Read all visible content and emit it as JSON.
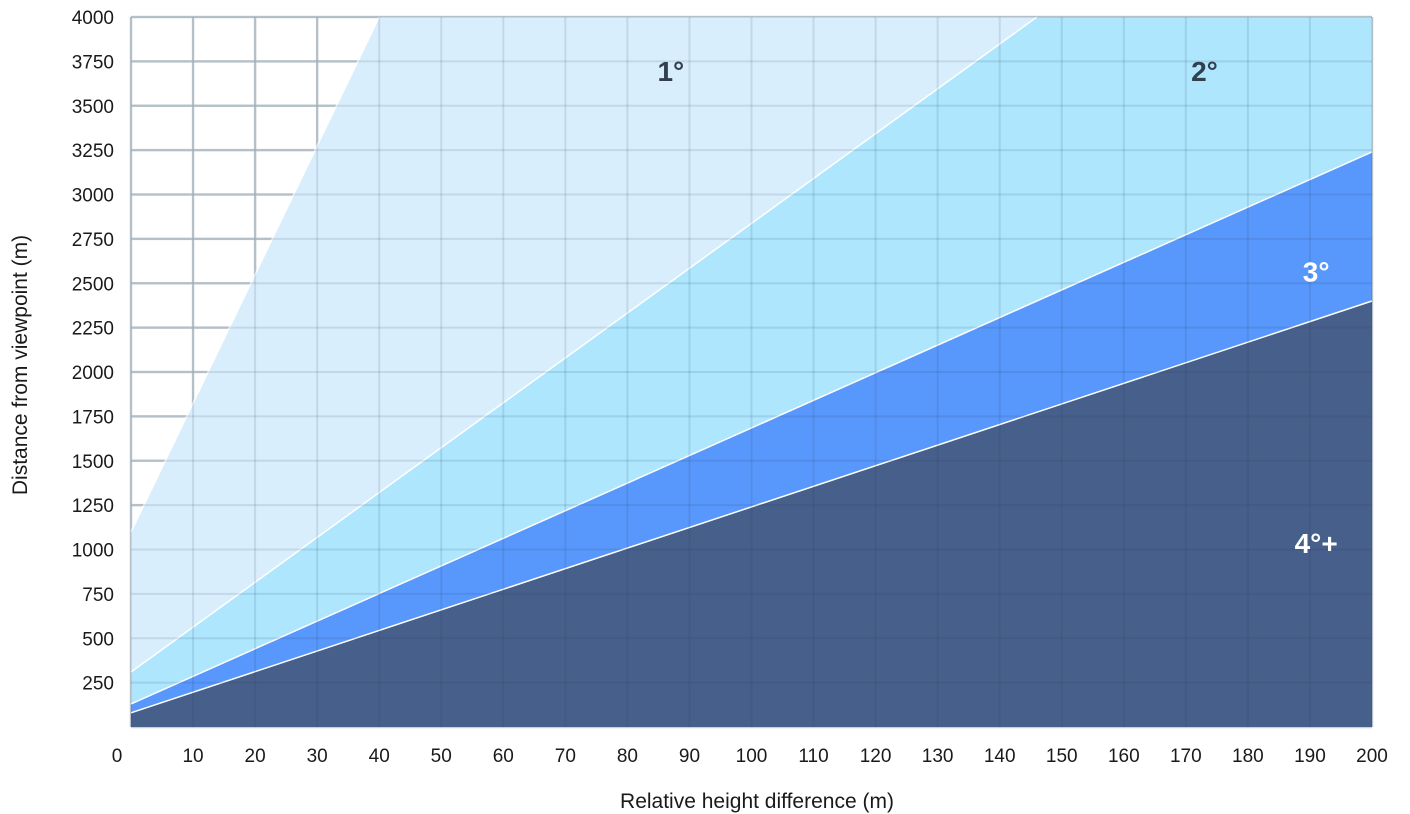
{
  "chart_data": {
    "type": "area",
    "title": "",
    "xlabel": "Relative height difference (m)",
    "ylabel": "Distance from viewpoint (m)",
    "xlim": [
      0,
      200
    ],
    "ylim": [
      0,
      4000
    ],
    "x_ticks": [
      0,
      10,
      20,
      30,
      40,
      50,
      60,
      70,
      80,
      90,
      100,
      110,
      120,
      130,
      140,
      150,
      160,
      170,
      180,
      190,
      200
    ],
    "y_ticks": [
      250,
      500,
      750,
      1000,
      1250,
      1500,
      1750,
      2000,
      2250,
      2500,
      2750,
      3000,
      3250,
      3500,
      3750,
      4000
    ],
    "grid": true,
    "bands": [
      {
        "label": "1°",
        "color": "#d8eefc",
        "label_color": "#333f4f",
        "label_at": [
          87,
          3640
        ],
        "upper": {
          "x": [
            0,
            40
          ],
          "y": [
            1100,
            4000
          ]
        }
      },
      {
        "label": "2°",
        "color": "#ade6fd",
        "label_color": "#333f4f",
        "label_at": [
          173,
          3640
        ],
        "upper": {
          "x": [
            0,
            146
          ],
          "y": [
            310,
            4000
          ]
        }
      },
      {
        "label": "3°",
        "color": "#5898fc",
        "label_color": "#ffffff",
        "label_at": [
          191,
          2510
        ],
        "upper": {
          "x": [
            0,
            200
          ],
          "y": [
            130,
            3240
          ]
        }
      },
      {
        "label": "4°+",
        "color": "#475f8b",
        "label_color": "#ffffff",
        "label_at": [
          191,
          980
        ],
        "upper": {
          "x": [
            0,
            200
          ],
          "y": [
            80,
            2400
          ]
        }
      }
    ]
  }
}
